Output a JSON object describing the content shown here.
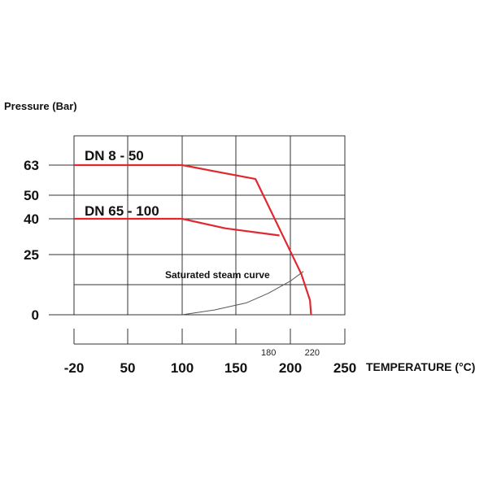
{
  "chart_data": {
    "type": "line",
    "ylabel": "Pressure (Bar)",
    "xlabel": "TEMPERATURE (°C)",
    "x_ticks": [
      "-20",
      "50",
      "100",
      "150",
      "200",
      "250"
    ],
    "y_ticks": [
      "0",
      "25",
      "40",
      "50",
      "63"
    ],
    "x_marks": [
      "180",
      "220"
    ],
    "grid": true,
    "series": [
      {
        "name": "DN 8 - 50",
        "color": "#e0282f",
        "points": [
          [
            -20,
            63
          ],
          [
            100,
            63
          ],
          [
            168,
            57
          ],
          [
            210,
            17
          ],
          [
            218,
            6
          ],
          [
            219,
            0
          ]
        ]
      },
      {
        "name": "DN 65 - 100",
        "color": "#e0282f",
        "points": [
          [
            -20,
            40
          ],
          [
            100,
            40
          ],
          [
            140,
            36
          ],
          [
            190,
            33
          ]
        ]
      },
      {
        "name": "Saturated steam curve",
        "color": "#555555",
        "points": [
          [
            100,
            0
          ],
          [
            130,
            2
          ],
          [
            160,
            5
          ],
          [
            180,
            9
          ],
          [
            200,
            14
          ],
          [
            212,
            18
          ]
        ]
      }
    ]
  }
}
